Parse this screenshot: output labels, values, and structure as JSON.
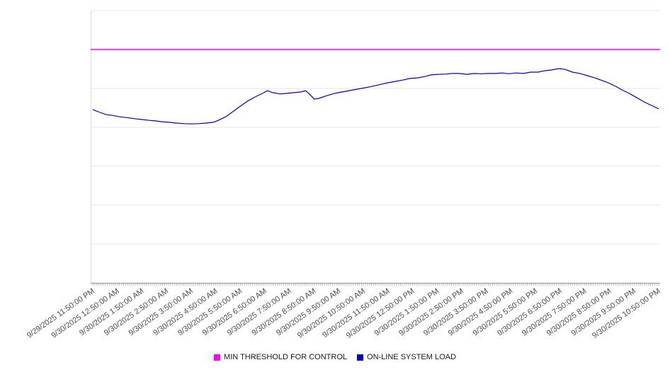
{
  "chart_data": {
    "type": "line",
    "title": "",
    "xlabel": "",
    "ylabel": "",
    "ylim": [
      0,
      100
    ],
    "yticks_visible": false,
    "grid": "horizontal",
    "grid_divisions": 7,
    "legend_position": "bottom",
    "categories": [
      "9/29/2025 11:50:00 PM",
      "9/30/2025 12:50:00 AM",
      "9/30/2025 1:50:00 AM",
      "9/30/2025 2:50:00 AM",
      "9/30/2025 3:50:00 AM",
      "9/30/2025 4:50:00 AM",
      "9/30/2025 5:50:00 AM",
      "9/30/2025 6:50:00 AM",
      "9/30/2025 7:50:00 AM",
      "9/30/2025 8:50:00 AM",
      "9/30/2025 9:50:00 AM",
      "9/30/2025 10:50:00 AM",
      "9/30/2025 11:50:00 AM",
      "9/30/2025 12:50:00 PM",
      "9/30/2025 1:50:00 PM",
      "9/30/2025 2:50:00 PM",
      "9/30/2025 3:50:00 PM",
      "9/30/2025 4:50:00 PM",
      "9/30/2025 5:50:00 PM",
      "9/30/2025 6:50:00 PM",
      "9/30/2025 7:50:00 PM",
      "9/30/2025 8:50:00 PM",
      "9/30/2025 9:50:00 PM",
      "9/30/2025 10:50:00 PM"
    ],
    "series": [
      {
        "name": "MIN THRESHOLD FOR CONTROL",
        "type": "threshold",
        "color": "#ff00ff",
        "value": 85.7
      },
      {
        "name": "ON-LINE SYSTEM LOAD",
        "type": "line",
        "color": "#0000cc",
        "points": [
          [
            0.0,
            63.6
          ],
          [
            0.3,
            62.6
          ],
          [
            0.55,
            61.8
          ],
          [
            0.8,
            61.5
          ],
          [
            1.1,
            61.0
          ],
          [
            1.4,
            60.7
          ],
          [
            1.7,
            60.3
          ],
          [
            2.0,
            60.0
          ],
          [
            2.3,
            59.7
          ],
          [
            2.55,
            59.5
          ],
          [
            2.8,
            59.2
          ],
          [
            3.1,
            59.0
          ],
          [
            3.4,
            58.7
          ],
          [
            3.7,
            58.5
          ],
          [
            4.0,
            58.4
          ],
          [
            4.3,
            58.5
          ],
          [
            4.6,
            58.7
          ],
          [
            4.9,
            59.0
          ],
          [
            5.1,
            59.7
          ],
          [
            5.4,
            61.0
          ],
          [
            5.7,
            62.9
          ],
          [
            6.0,
            64.9
          ],
          [
            6.3,
            66.8
          ],
          [
            6.6,
            68.3
          ],
          [
            6.9,
            69.6
          ],
          [
            7.1,
            70.6
          ],
          [
            7.3,
            69.9
          ],
          [
            7.6,
            69.4
          ],
          [
            7.9,
            69.6
          ],
          [
            8.2,
            69.9
          ],
          [
            8.45,
            70.1
          ],
          [
            8.65,
            70.6
          ],
          [
            8.8,
            69.4
          ],
          [
            9.0,
            67.5
          ],
          [
            9.2,
            67.8
          ],
          [
            9.45,
            68.6
          ],
          [
            9.75,
            69.4
          ],
          [
            10.0,
            69.9
          ],
          [
            10.3,
            70.4
          ],
          [
            10.6,
            70.9
          ],
          [
            10.9,
            71.4
          ],
          [
            11.2,
            71.9
          ],
          [
            11.5,
            72.5
          ],
          [
            11.75,
            73.0
          ],
          [
            12.0,
            73.5
          ],
          [
            12.3,
            74.0
          ],
          [
            12.6,
            74.5
          ],
          [
            12.9,
            75.1
          ],
          [
            13.2,
            75.3
          ],
          [
            13.5,
            75.8
          ],
          [
            13.75,
            76.4
          ],
          [
            14.05,
            76.6
          ],
          [
            14.35,
            76.7
          ],
          [
            14.6,
            76.9
          ],
          [
            14.9,
            76.9
          ],
          [
            15.2,
            76.6
          ],
          [
            15.5,
            76.9
          ],
          [
            15.8,
            76.8
          ],
          [
            16.05,
            76.9
          ],
          [
            16.35,
            76.9
          ],
          [
            16.65,
            77.1
          ],
          [
            16.9,
            76.8
          ],
          [
            17.2,
            77.1
          ],
          [
            17.5,
            76.9
          ],
          [
            17.8,
            77.4
          ],
          [
            18.1,
            77.4
          ],
          [
            18.35,
            77.9
          ],
          [
            18.65,
            78.2
          ],
          [
            18.95,
            78.7
          ],
          [
            19.2,
            78.4
          ],
          [
            19.5,
            77.4
          ],
          [
            19.8,
            76.9
          ],
          [
            20.1,
            76.1
          ],
          [
            20.4,
            75.3
          ],
          [
            20.65,
            74.5
          ],
          [
            20.95,
            73.5
          ],
          [
            21.25,
            72.2
          ],
          [
            21.5,
            70.9
          ],
          [
            21.8,
            69.6
          ],
          [
            22.1,
            68.1
          ],
          [
            22.4,
            66.5
          ],
          [
            22.7,
            65.2
          ],
          [
            23.0,
            63.9
          ]
        ]
      }
    ]
  },
  "legend": {
    "items": [
      {
        "label": "MIN THRESHOLD FOR CONTROL",
        "color": "#ff00ff"
      },
      {
        "label": "ON-LINE SYSTEM LOAD",
        "color": "#0000cc"
      }
    ]
  }
}
